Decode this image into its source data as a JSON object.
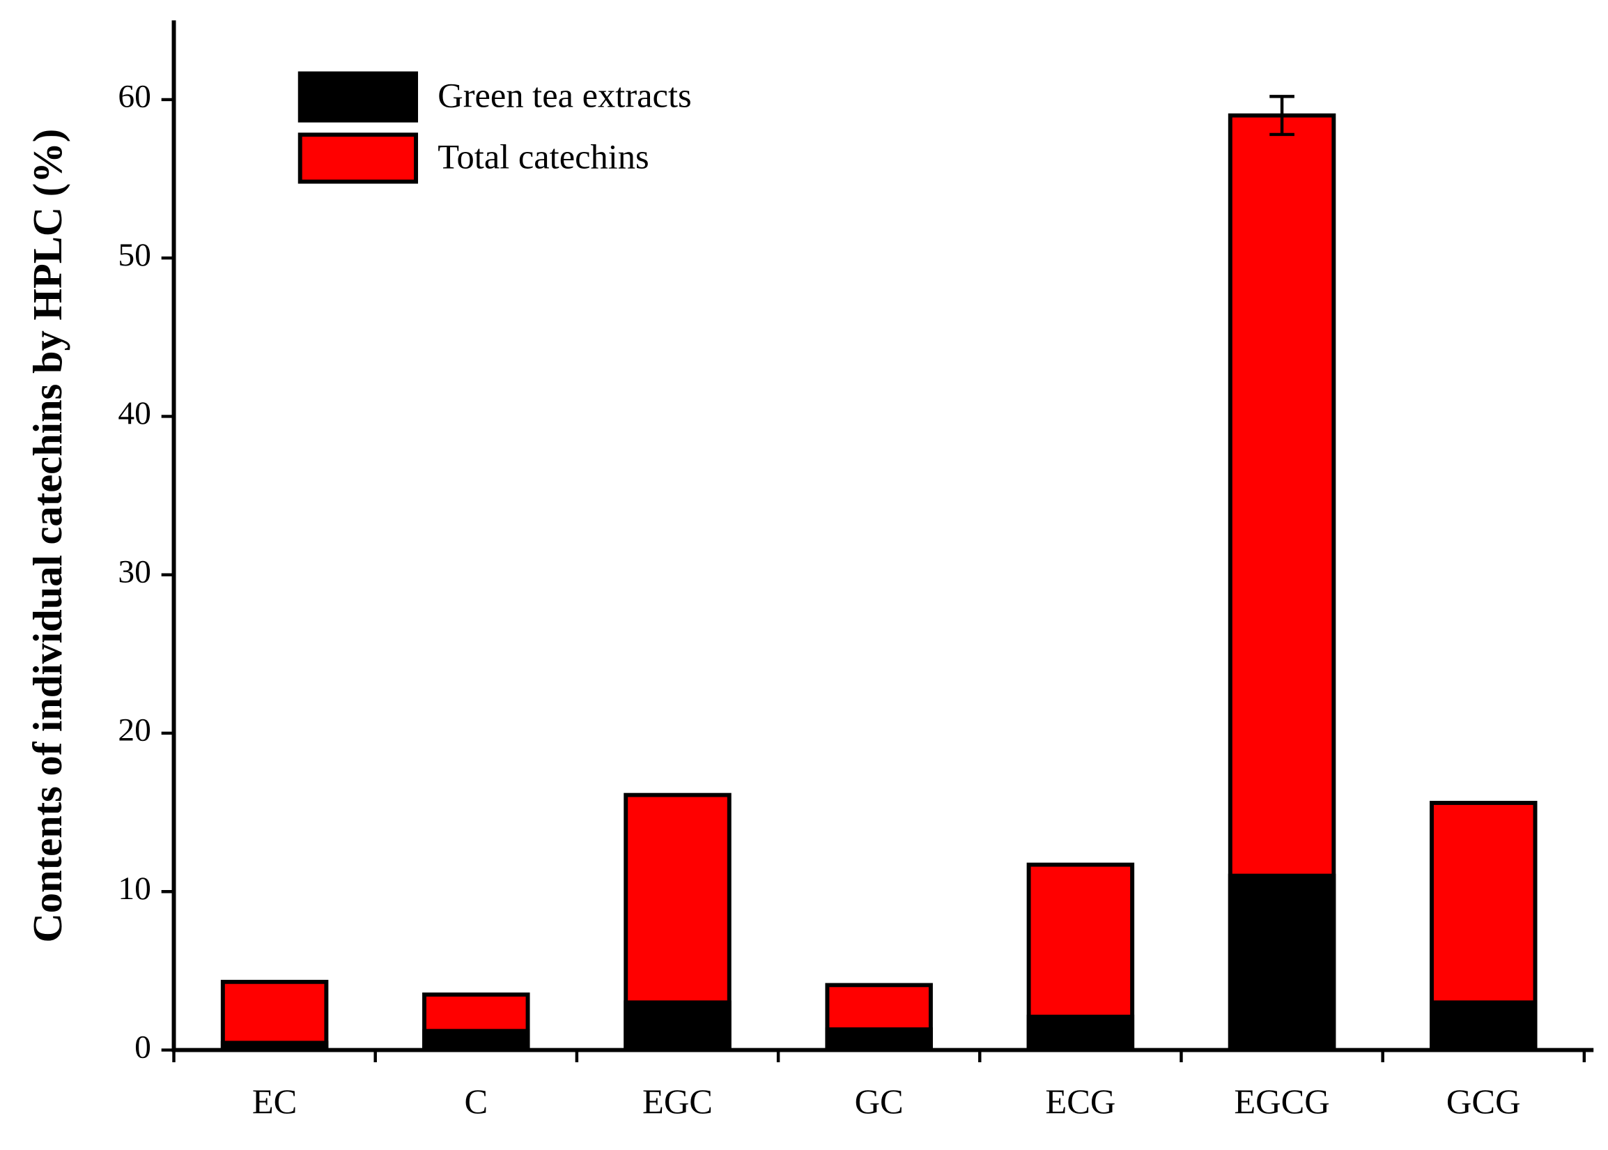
{
  "chart_data": {
    "type": "bar",
    "overlap": true,
    "y_label": "Contents of individual catechins by HPLC (%)",
    "categories": [
      "EC",
      "C",
      "EGC",
      "GC",
      "ECG",
      "EGCG",
      "GCG"
    ],
    "series": [
      {
        "name": "Total catechins",
        "color": "#ff0000",
        "values": [
          4.3,
          3.5,
          16.1,
          4.1,
          11.7,
          59.0,
          15.6
        ],
        "errors": [
          null,
          null,
          null,
          null,
          null,
          1.2,
          null
        ]
      },
      {
        "name": "Green tea extracts",
        "color": "#000000",
        "values": [
          0.45,
          1.2,
          3.0,
          1.3,
          2.1,
          11.0,
          3.0
        ]
      }
    ],
    "ylim": [
      0,
      65
    ],
    "yticks": [
      0,
      10,
      20,
      30,
      40,
      50,
      60
    ]
  }
}
